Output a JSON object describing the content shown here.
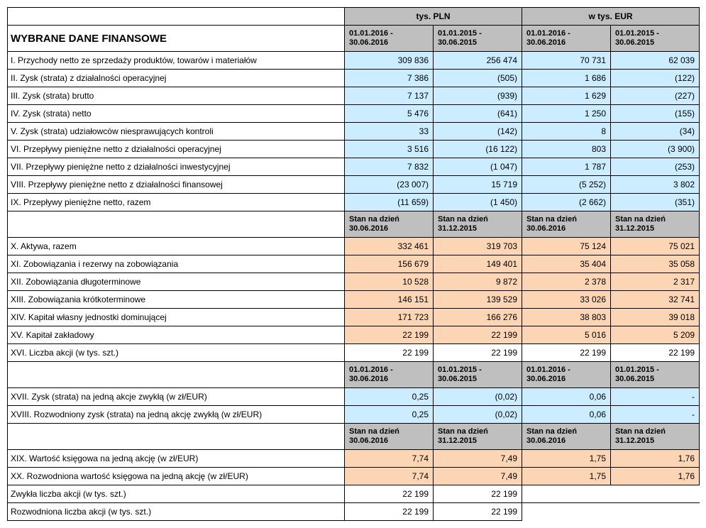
{
  "title": "WYBRANE DANE FINANSOWE",
  "currencyHeaders": {
    "pln": "tys. PLN",
    "eur": "w tys. EUR"
  },
  "periods1": {
    "c1": "01.01.2016 - 30.06.2016",
    "c2": "01.01.2015 - 30.06.2015",
    "c3": "01.01.2016 - 30.06.2016",
    "c4": "01.01.2015 - 30.06.2015"
  },
  "section1": [
    {
      "label": "I. Przychody netto ze sprzedaży produktów, towarów i materiałów",
      "c1": "309 836",
      "c2": "256 474",
      "c3": "70 731",
      "c4": "62 039"
    },
    {
      "label": "II. Zysk (strata) z działalności operacyjnej",
      "c1": "7 386",
      "c2": "(505)",
      "c3": "1 686",
      "c4": "(122)"
    },
    {
      "label": "III. Zysk (strata) brutto",
      "c1": "7 137",
      "c2": "(939)",
      "c3": "1 629",
      "c4": "(227)"
    },
    {
      "label": "IV. Zysk (strata) netto",
      "c1": "5 476",
      "c2": "(641)",
      "c3": "1 250",
      "c4": "(155)"
    },
    {
      "label": "V. Zysk (strata) udziałowców niesprawujących kontroli",
      "c1": "33",
      "c2": "(142)",
      "c3": "8",
      "c4": "(34)"
    },
    {
      "label": "VI. Przepływy pieniężne netto z działalności operacyjnej",
      "c1": "3 516",
      "c2": "(16 122)",
      "c3": "803",
      "c4": "(3 900)"
    },
    {
      "label": "VII. Przepływy pieniężne netto z działalności inwestycyjnej",
      "c1": "7 832",
      "c2": "(1 047)",
      "c3": "1 787",
      "c4": "(253)"
    },
    {
      "label": "VIII. Przepływy pieniężne netto z działalności finansowej",
      "c1": "(23 007)",
      "c2": "15 719",
      "c3": "(5 252)",
      "c4": "3 802"
    },
    {
      "label": "IX. Przepływy pieniężne netto, razem",
      "c1": "(11 659)",
      "c2": "(1 450)",
      "c3": "(2 662)",
      "c4": "(351)"
    }
  ],
  "periods2": {
    "c1": "Stan na dzień 30.06.2016",
    "c2": "Stan na dzień 31.12.2015",
    "c3": "Stan na dzień 30.06.2016",
    "c4": "Stan na dzień 31.12.2015"
  },
  "section2": [
    {
      "label": "X. Aktywa, razem",
      "c1": "332 461",
      "c2": "319 703",
      "c3": "75 124",
      "c4": "75 021"
    },
    {
      "label": "XI. Zobowiązania i rezerwy na zobowiązania",
      "c1": "156 679",
      "c2": "149 401",
      "c3": "35 404",
      "c4": "35 058"
    },
    {
      "label": "XII. Zobowiązania długoterminowe",
      "c1": "10 528",
      "c2": "9 872",
      "c3": "2 378",
      "c4": "2 317"
    },
    {
      "label": "XIII. Zobowiązania krótkoterminowe",
      "c1": "146 151",
      "c2": "139 529",
      "c3": "33 026",
      "c4": "32 741"
    },
    {
      "label": "XIV. Kapitał własny jednostki dominującej",
      "c1": "171 723",
      "c2": "166 276",
      "c3": "38 803",
      "c4": "39 018"
    },
    {
      "label": "XV. Kapitał zakładowy",
      "c1": "22 199",
      "c2": "22 199",
      "c3": "5 016",
      "c4": "5 209"
    },
    {
      "label": "XVI. Liczba akcji (w tys. szt.)",
      "c1": "22 199",
      "c2": "22 199",
      "c3": "22 199",
      "c4": "22 199",
      "bg": "white"
    }
  ],
  "periods3": {
    "c1": "01.01.2016 - 30.06.2016",
    "c2": "01.01.2015 - 30.06.2015",
    "c3": "01.01.2016 - 30.06.2016",
    "c4": "01.01.2015 - 30.06.2015"
  },
  "section3": [
    {
      "label": "XVII. Zysk (strata) na jedną akcje zwykłą (w zł/EUR)",
      "c1": "0,25",
      "c2": "(0,02)",
      "c3": "0,06",
      "c4": "-"
    },
    {
      "label": "XVIII. Rozwodniony zysk (strata) na jedną akcję zwykłą (w zł/EUR)",
      "c1": "0,25",
      "c2": "(0,02)",
      "c3": "0,06",
      "c4": "-"
    }
  ],
  "periods4": {
    "c1": "Stan na dzień 30.06.2016",
    "c2": "Stan na dzień 31.12.2015",
    "c3": "Stan na dzień 30.06.2016",
    "c4": "Stan na dzień 31.12.2015"
  },
  "section4": [
    {
      "label": "XIX. Wartość księgowa na jedną akcję (w zł/EUR)",
      "c1": "7,74",
      "c2": "7,49",
      "c3": "1,75",
      "c4": "1,76"
    },
    {
      "label": "XX. Rozwodniona wartość księgowa na jedną akcję (w zł/EUR)",
      "c1": "7,74",
      "c2": "7,49",
      "c3": "1,75",
      "c4": "1,76"
    }
  ],
  "section5": [
    {
      "label": "Zwykła liczba akcji (w tys. szt.)",
      "c1": "22 199",
      "c2": "22 199"
    },
    {
      "label": "Rozwodniona liczba akcji (w tys. szt.)",
      "c1": "22 199",
      "c2": "22 199"
    }
  ]
}
